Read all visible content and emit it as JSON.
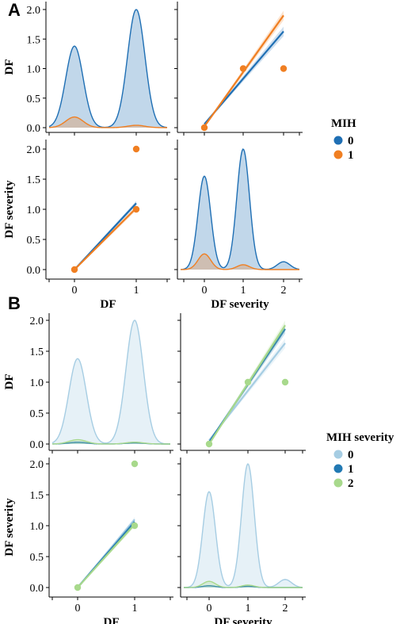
{
  "figure": {
    "panel_labels": [
      "A",
      "B"
    ]
  },
  "chart_data": [
    {
      "id": "A",
      "type": "pairplot",
      "variables": [
        "DF",
        "DF severity"
      ],
      "hue": "MIH",
      "legend": {
        "title": "MIH",
        "placement": "right",
        "entries": [
          {
            "label": "0",
            "color": "#1f6fb4"
          },
          {
            "label": "1",
            "color": "#f07f22"
          }
        ]
      },
      "y_ticks": [
        "0.0",
        "0.5",
        "1.0",
        "1.5",
        "2.0"
      ],
      "x_ticks": {
        "DF": [
          "0",
          "1"
        ],
        "DF severity": [
          "0",
          "1",
          "2"
        ]
      },
      "diagonal_kde": {
        "DF": {
          "x_values": [
            0,
            1
          ],
          "series": [
            {
              "group": "0",
              "peak_heights": [
                1.38,
                2.0
              ]
            },
            {
              "group": "1",
              "peak_heights": [
                0.18,
                0.04
              ]
            }
          ]
        },
        "DF severity": {
          "x_values": [
            0,
            1,
            2
          ],
          "series": [
            {
              "group": "0",
              "peak_heights": [
                1.55,
                2.0,
                0.13
              ]
            },
            {
              "group": "1",
              "peak_heights": [
                0.26,
                0.08,
                0.0
              ]
            }
          ]
        }
      },
      "scatter_regression": [
        {
          "x_var": "DF severity",
          "y_var": "DF",
          "points": [
            {
              "group": "1",
              "x": 0,
              "y": 0
            },
            {
              "group": "1",
              "x": 1,
              "y": 1
            },
            {
              "group": "1",
              "x": 2,
              "y": 1
            }
          ],
          "fits": [
            {
              "group": "0",
              "x": [
                0,
                2
              ],
              "y": [
                0.06,
                1.63
              ]
            },
            {
              "group": "1",
              "x": [
                0,
                2
              ],
              "y": [
                0.02,
                1.9
              ]
            }
          ]
        },
        {
          "x_var": "DF",
          "y_var": "DF severity",
          "points": [
            {
              "group": "1",
              "x": 0,
              "y": 0
            },
            {
              "group": "1",
              "x": 1,
              "y": 1
            },
            {
              "group": "1",
              "x": 1,
              "y": 2
            }
          ],
          "fits": [
            {
              "group": "0",
              "x": [
                0,
                1
              ],
              "y": [
                0.0,
                1.1
              ]
            },
            {
              "group": "1",
              "x": [
                0,
                1
              ],
              "y": [
                0.0,
                1.02
              ]
            }
          ]
        }
      ]
    },
    {
      "id": "B",
      "type": "pairplot",
      "variables": [
        "DF",
        "DF severity"
      ],
      "hue": "MIH severity",
      "legend": {
        "title": "MIH severity",
        "placement": "right",
        "entries": [
          {
            "label": "0",
            "color": "#a6cde3"
          },
          {
            "label": "1",
            "color": "#2179b3"
          },
          {
            "label": "2",
            "color": "#a8d98c"
          }
        ]
      },
      "y_ticks": [
        "0.0",
        "0.5",
        "1.0",
        "1.5",
        "2.0"
      ],
      "x_ticks": {
        "DF": [
          "0",
          "1"
        ],
        "DF severity": [
          "0",
          "1",
          "2"
        ]
      },
      "diagonal_kde": {
        "DF": {
          "x_values": [
            0,
            1
          ],
          "series": [
            {
              "group": "0",
              "peak_heights": [
                1.38,
                2.0
              ]
            },
            {
              "group": "1",
              "peak_heights": [
                0.03,
                0.02
              ]
            },
            {
              "group": "2",
              "peak_heights": [
                0.07,
                0.03
              ]
            }
          ]
        },
        "DF severity": {
          "x_values": [
            0,
            1,
            2
          ],
          "series": [
            {
              "group": "0",
              "peak_heights": [
                1.55,
                2.0,
                0.13
              ]
            },
            {
              "group": "1",
              "peak_heights": [
                0.03,
                0.02,
                0.0
              ]
            },
            {
              "group": "2",
              "peak_heights": [
                0.1,
                0.04,
                0.0
              ]
            }
          ]
        }
      },
      "scatter_regression": [
        {
          "x_var": "DF severity",
          "y_var": "DF",
          "points": [
            {
              "group": "2",
              "x": 0,
              "y": 0
            },
            {
              "group": "2",
              "x": 1,
              "y": 1
            },
            {
              "group": "2",
              "x": 2,
              "y": 1
            }
          ],
          "fits": [
            {
              "group": "0",
              "x": [
                0,
                2
              ],
              "y": [
                0.06,
                1.63
              ]
            },
            {
              "group": "1",
              "x": [
                0,
                2
              ],
              "y": [
                0.03,
                1.86
              ]
            },
            {
              "group": "2",
              "x": [
                0,
                2
              ],
              "y": [
                0.0,
                1.92
              ]
            }
          ]
        },
        {
          "x_var": "DF",
          "y_var": "DF severity",
          "points": [
            {
              "group": "2",
              "x": 0,
              "y": 0
            },
            {
              "group": "2",
              "x": 1,
              "y": 1
            },
            {
              "group": "2",
              "x": 1,
              "y": 2
            }
          ],
          "fits": [
            {
              "group": "0",
              "x": [
                0,
                1
              ],
              "y": [
                0.0,
                1.1
              ]
            },
            {
              "group": "1",
              "x": [
                0,
                1
              ],
              "y": [
                0.0,
                1.06
              ]
            },
            {
              "group": "2",
              "x": [
                0,
                1
              ],
              "y": [
                0.0,
                1.02
              ]
            }
          ]
        }
      ]
    }
  ]
}
